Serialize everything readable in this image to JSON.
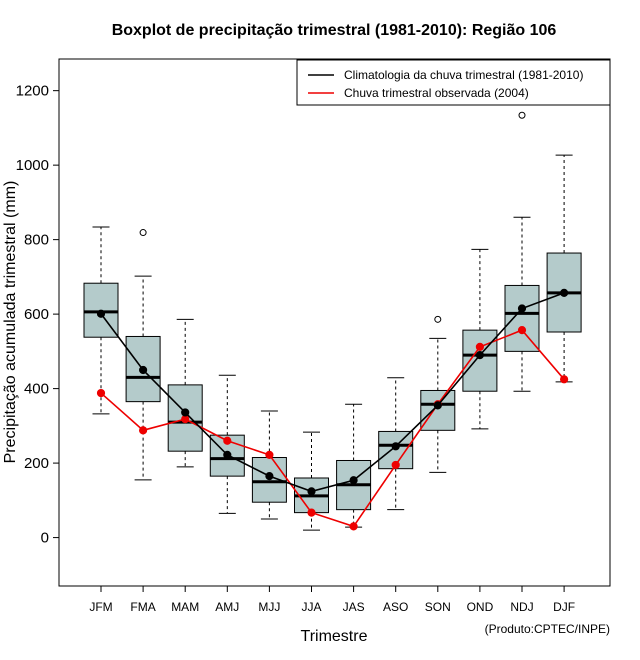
{
  "chart_data": {
    "type": "boxplot",
    "title": "Boxplot de precipitação trimestral (1981-2010): Região 106",
    "xlabel": "Trimestre",
    "ylabel": "Precipitação acumulada trimestral (mm)",
    "credit": "(Produto:CPTEC/INPE)",
    "ylim": [
      -130,
      1285
    ],
    "yticks": [
      0,
      200,
      400,
      600,
      800,
      1000,
      1200
    ],
    "categories": [
      "JFM",
      "FMA",
      "MAM",
      "AMJ",
      "MJJ",
      "JJA",
      "JAS",
      "ASO",
      "SON",
      "OND",
      "NDJ",
      "DJF"
    ],
    "boxes": [
      {
        "whisker_low": 332,
        "q1": 538,
        "median": 606,
        "q3": 683,
        "whisker_high": 834,
        "outliers": []
      },
      {
        "whisker_low": 155,
        "q1": 365,
        "median": 430,
        "q3": 540,
        "whisker_high": 702,
        "outliers": [
          819
        ]
      },
      {
        "whisker_low": 190,
        "q1": 232,
        "median": 310,
        "q3": 410,
        "whisker_high": 586,
        "outliers": []
      },
      {
        "whisker_low": 65,
        "q1": 165,
        "median": 212,
        "q3": 275,
        "whisker_high": 436,
        "outliers": []
      },
      {
        "whisker_low": 50,
        "q1": 95,
        "median": 150,
        "q3": 215,
        "whisker_high": 340,
        "outliers": []
      },
      {
        "whisker_low": 20,
        "q1": 67,
        "median": 112,
        "q3": 160,
        "whisker_high": 283,
        "outliers": []
      },
      {
        "whisker_low": 28,
        "q1": 75,
        "median": 142,
        "q3": 207,
        "whisker_high": 358,
        "outliers": []
      },
      {
        "whisker_low": 75,
        "q1": 185,
        "median": 248,
        "q3": 285,
        "whisker_high": 429,
        "outliers": []
      },
      {
        "whisker_low": 175,
        "q1": 288,
        "median": 358,
        "q3": 395,
        "whisker_high": 535,
        "outliers": [
          586
        ]
      },
      {
        "whisker_low": 292,
        "q1": 393,
        "median": 490,
        "q3": 557,
        "whisker_high": 774,
        "outliers": []
      },
      {
        "whisker_low": 393,
        "q1": 500,
        "median": 602,
        "q3": 677,
        "whisker_high": 860,
        "outliers": [
          1134
        ]
      },
      {
        "whisker_low": 418,
        "q1": 552,
        "median": 657,
        "q3": 764,
        "whisker_high": 1027,
        "outliers": []
      }
    ],
    "series": [
      {
        "name": "Climatologia da chuva trimestral (1981-2010)",
        "color": "#000000",
        "values": [
          601,
          450,
          336,
          222,
          165,
          124,
          154,
          245,
          355,
          490,
          615,
          657
        ]
      },
      {
        "name": "Chuva trimestral observada (2004)",
        "color": "#ee0000",
        "values": [
          388,
          288,
          318,
          260,
          222,
          67,
          30,
          195,
          358,
          512,
          557,
          425
        ]
      }
    ],
    "box_fill": "#b4cbcb",
    "outlier_style": "open-circle",
    "legend_position": "top-right"
  }
}
